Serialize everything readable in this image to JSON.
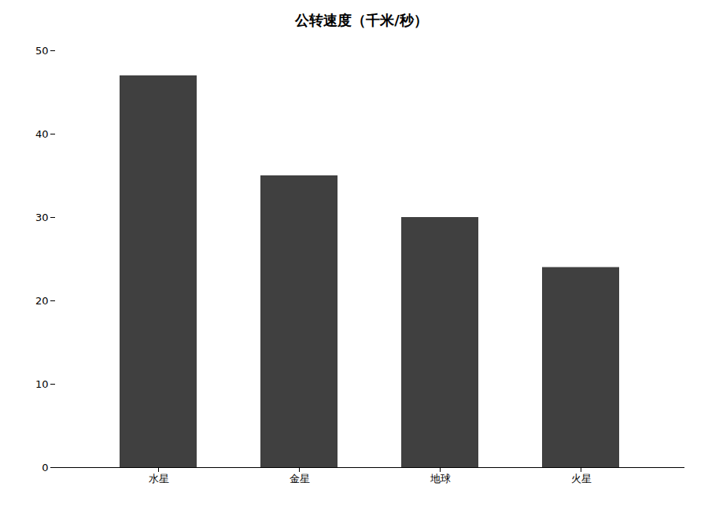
{
  "chart_data": {
    "type": "bar",
    "title": "公转速度（千米/秒）",
    "categories": [
      "水星",
      "金星",
      "地球",
      "火星"
    ],
    "values": [
      47,
      35,
      30,
      24
    ],
    "color": "#404040",
    "ylim": [
      0,
      50
    ],
    "yticks": [
      0,
      10,
      20,
      30,
      40,
      50
    ],
    "grid": false
  }
}
